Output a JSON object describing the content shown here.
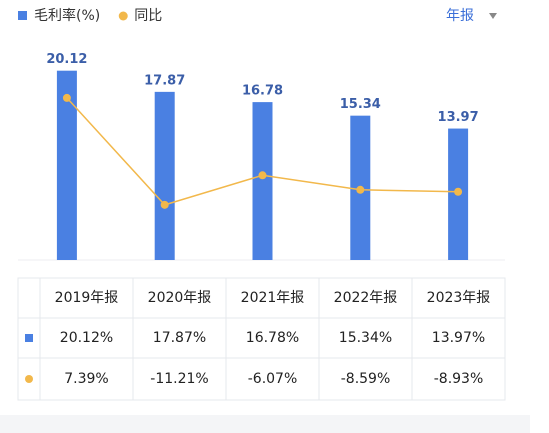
{
  "chart_data": {
    "type": "bar",
    "categories": [
      "2019年报",
      "2020年报",
      "2021年报",
      "2022年报",
      "2023年报"
    ],
    "series": [
      {
        "name": "毛利率(%)",
        "type": "bar",
        "color": "#4a80e2",
        "values": [
          20.12,
          17.87,
          16.78,
          15.34,
          13.97
        ],
        "value_labels": [
          "20.12%",
          "17.87%",
          "16.78%",
          "15.34%",
          "13.97%"
        ]
      },
      {
        "name": "同比",
        "type": "line",
        "axis": "y2",
        "color": "#f2b84b",
        "values": [
          7.39,
          -11.21,
          -6.07,
          -8.59,
          -8.93
        ],
        "value_labels": [
          "7.39%",
          "-11.21%",
          "-6.07%",
          "-8.59%",
          "-8.93%"
        ]
      }
    ],
    "ylim": [
      0,
      22
    ],
    "y2lim": [
      -20.8,
      15.2
    ],
    "positive_color": "#d9534f",
    "negative_color": "#3ea56b",
    "period_selector": "年报"
  }
}
